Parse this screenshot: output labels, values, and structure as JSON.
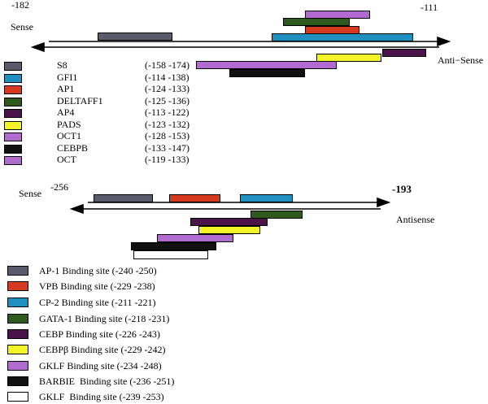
{
  "colors": {
    "gray": "#5a5a6a",
    "blue": "#1f8fbf",
    "red": "#d63a1e",
    "green": "#2e5a1e",
    "purple_dark": "#4a1448",
    "yellow": "#f4f42a",
    "lavender": "#b06ad0",
    "black": "#111111",
    "white": "#ffffff"
  },
  "top": {
    "left_coord": "-182",
    "right_coord": "-111",
    "sense_label": "Sense",
    "antisense_label": "Anti−Sense",
    "legend": [
      {
        "name": "S8",
        "range": "(-158 -174)",
        "color": "#5a5a6a"
      },
      {
        "name": "GFI1",
        "range": "(-114 -138)",
        "color": "#1f8fbf"
      },
      {
        "name": "AP1",
        "range": "(-124 -133)",
        "color": "#d63a1e"
      },
      {
        "name": "DELTAFF1",
        "range": "(-125 -136)",
        "color": "#2e5a1e"
      },
      {
        "name": "AP4",
        "range": "(-113 -122)",
        "color": "#4a1448"
      },
      {
        "name": "PADS",
        "range": "(-123 -132)",
        "color": "#f4f42a"
      },
      {
        "name": "OCT1",
        "range": "(-128 -153)",
        "color": "#b06ad0"
      },
      {
        "name": "CEBPB",
        "range": "(-133 -147)",
        "color": "#111111"
      },
      {
        "name": "OCT",
        "range": "(-119 -133)",
        "color": "#b06ad0"
      }
    ]
  },
  "bottom": {
    "left_coord": "-256",
    "right_coord": "-193",
    "sense_label": "Sense",
    "antisense_label": "Antisense",
    "legend": [
      {
        "label": "AP-1 Binding site (-240 -250)",
        "color": "#5a5a6a"
      },
      {
        "label": "VPB Binding site (-229 -238)",
        "color": "#d63a1e"
      },
      {
        "label": "CP-2 Binding site (-211 -221)",
        "color": "#1f8fbf"
      },
      {
        "label": "GATA-1 Binding site (-218 -231)",
        "color": "#2e5a1e"
      },
      {
        "label": "CEBP Binding site (-226 -243)",
        "color": "#4a1448"
      },
      {
        "label": "CEBPβ Binding site (-229 -242)",
        "color": "#f4f42a"
      },
      {
        "label": "GKLF Binding site (-234 -248)",
        "color": "#b06ad0"
      },
      {
        "label": "BARBIE  Binding site (-236 -251)",
        "color": "#111111"
      },
      {
        "label": "GKLF  Binding site (-239 -253)",
        "color": "#ffffff"
      }
    ]
  }
}
